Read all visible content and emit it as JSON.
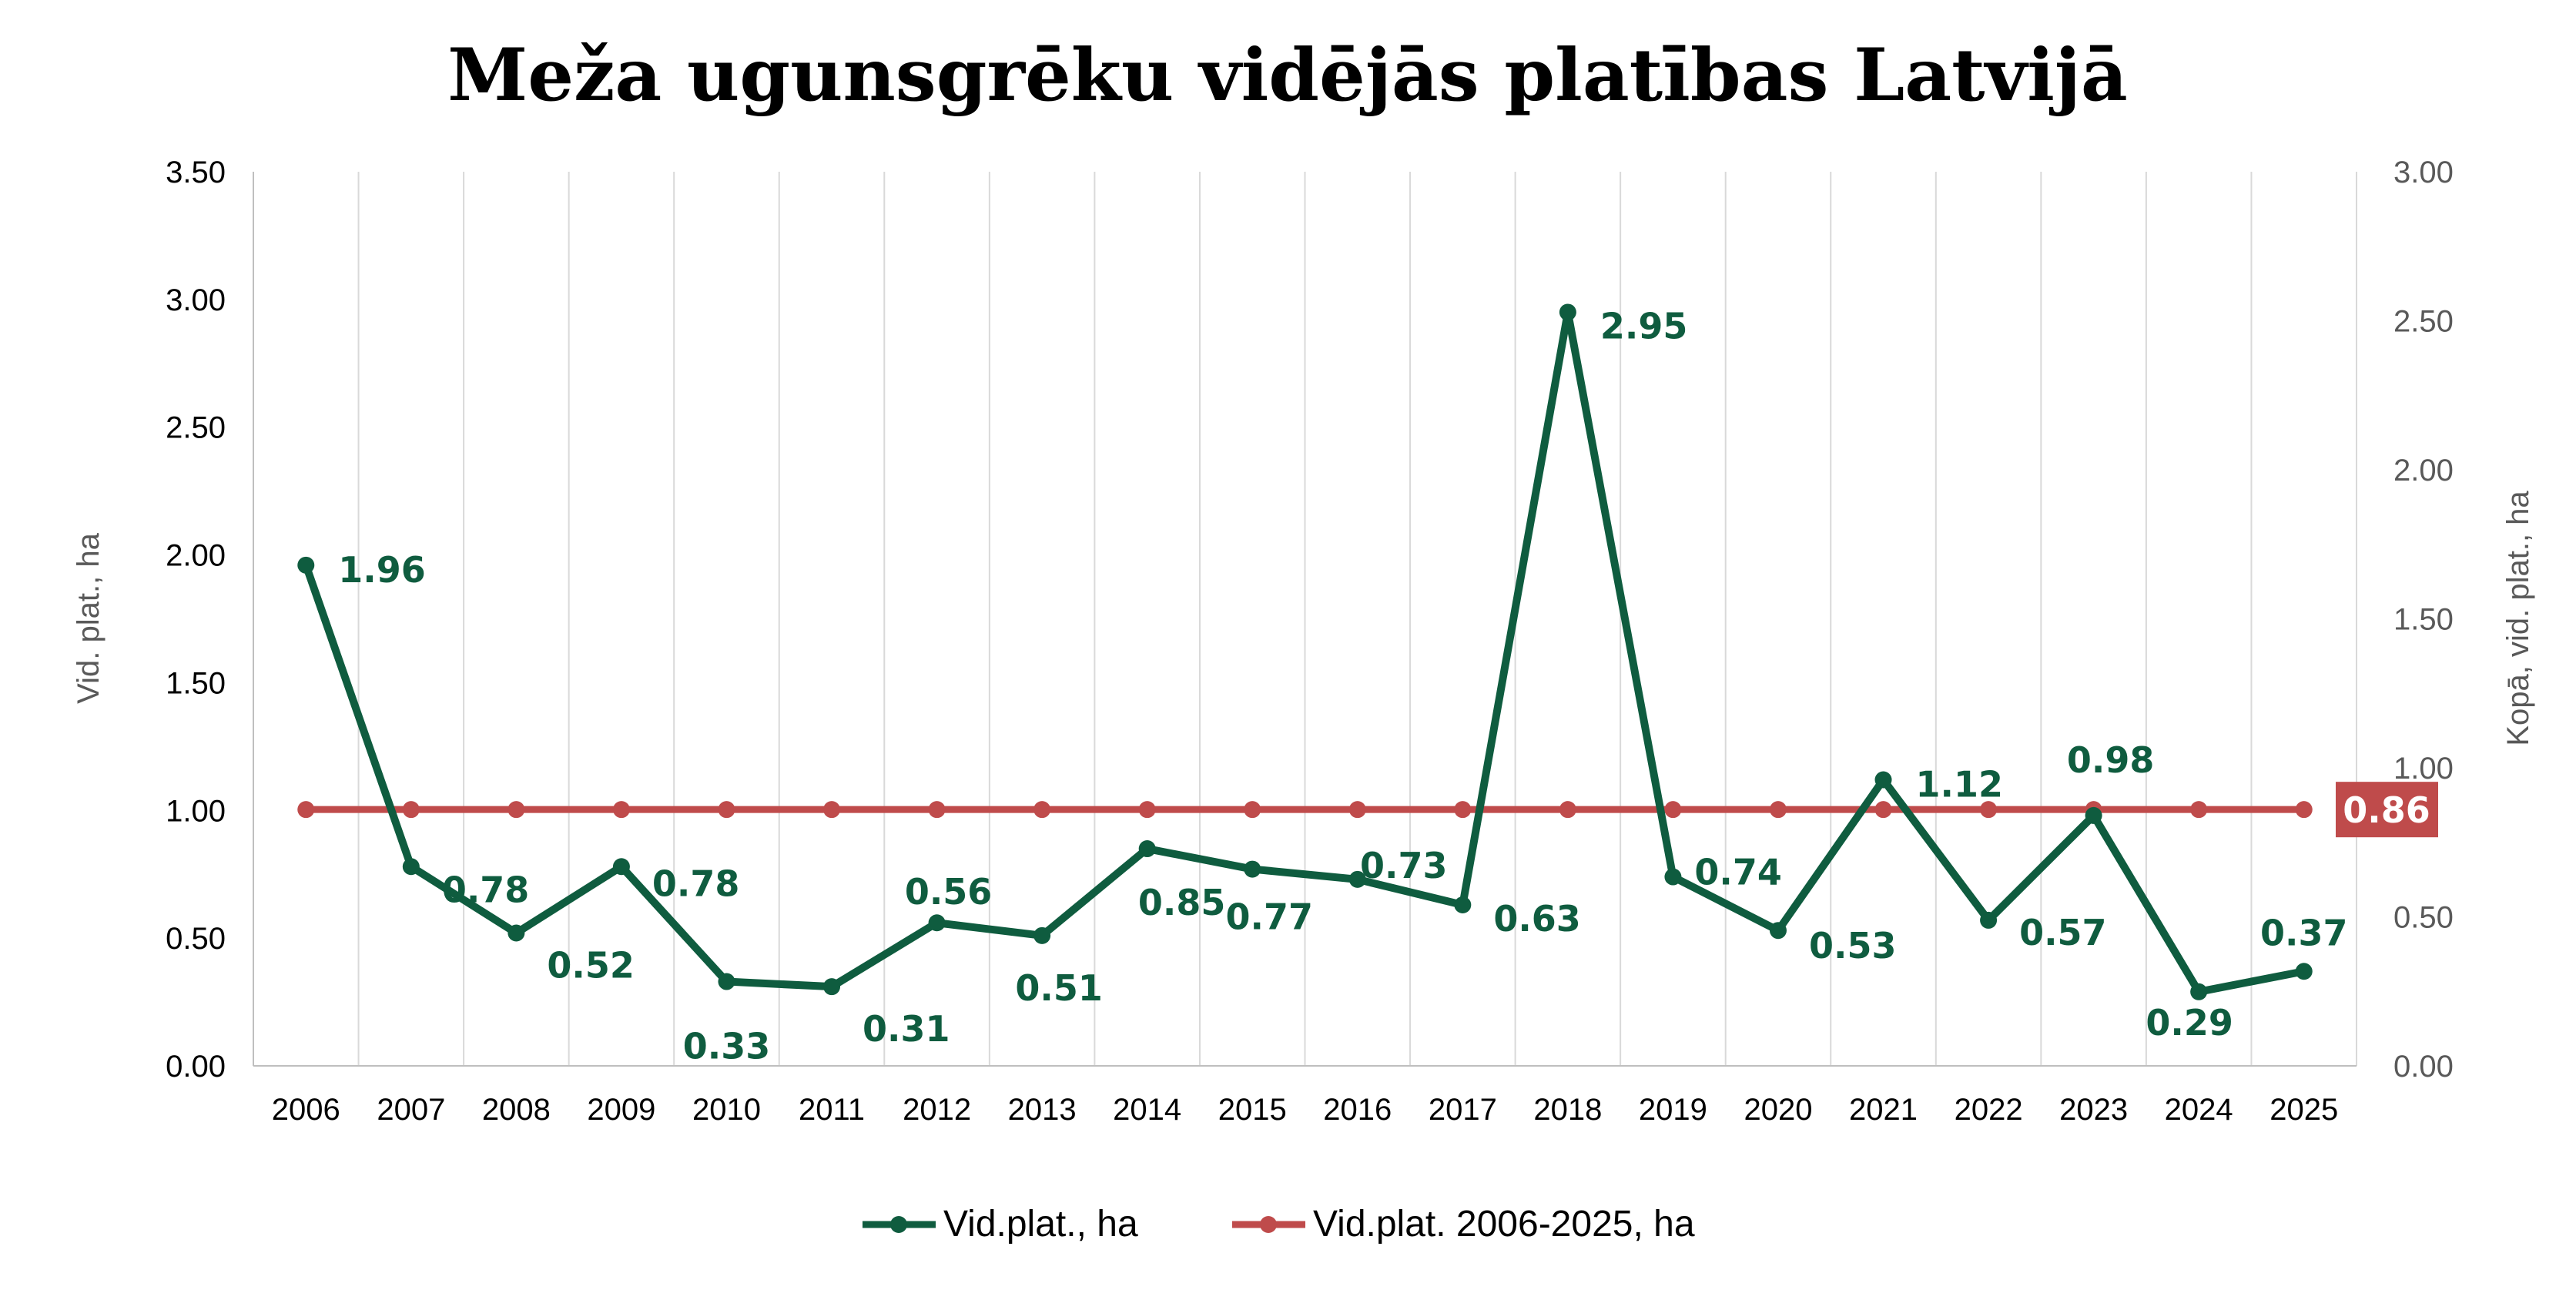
{
  "chart_data": {
    "type": "line",
    "title": "Meža ugunsgrēku vidējās platības Latvijā",
    "ylabel": "Vid. plat., ha",
    "y2label": "Kopā, vid. plat., ha",
    "ylim": [
      0,
      3.5
    ],
    "y2lim": [
      0,
      3.0
    ],
    "y_ticks": [
      "0.00",
      "0.50",
      "1.00",
      "1.50",
      "2.00",
      "2.50",
      "3.00",
      "3.50"
    ],
    "y2_ticks": [
      "0.00",
      "0.50",
      "1.00",
      "1.50",
      "2.00",
      "2.50",
      "3.00"
    ],
    "categories": [
      "2006",
      "2007",
      "2008",
      "2009",
      "2010",
      "2011",
      "2012",
      "2013",
      "2014",
      "2015",
      "2016",
      "2017",
      "2018",
      "2019",
      "2020",
      "2021",
      "2022",
      "2023",
      "2024",
      "2025"
    ],
    "grid": "vertical",
    "legend_position": "bottom",
    "series": [
      {
        "name": "Vid.plat., ha",
        "color": "#0f5c3f",
        "axis": "left",
        "values": [
          1.96,
          0.78,
          0.52,
          0.78,
          0.33,
          0.31,
          0.56,
          0.51,
          0.85,
          0.77,
          0.73,
          0.63,
          2.95,
          0.74,
          0.53,
          1.12,
          0.57,
          0.98,
          0.29,
          0.37
        ],
        "labels": [
          "1.96",
          "0.78",
          "0.52",
          "0.78",
          "0.33",
          "0.31",
          "0.56",
          "0.51",
          "0.85",
          "0.77",
          "0.73",
          "0.63",
          "2.95",
          "0.74",
          "0.53",
          "1.12",
          "0.57",
          "0.98",
          "0.29",
          "0.37"
        ]
      },
      {
        "name": "Vid.plat. 2006-2025, ha",
        "color": "#bf4b4b",
        "axis": "right",
        "values": [
          0.86,
          0.86,
          0.86,
          0.86,
          0.86,
          0.86,
          0.86,
          0.86,
          0.86,
          0.86,
          0.86,
          0.86,
          0.86,
          0.86,
          0.86,
          0.86,
          0.86,
          0.86,
          0.86,
          0.86
        ],
        "end_label": "0.86"
      }
    ],
    "colors": {
      "grid": "#d9d9d9",
      "axis_text": "#000000",
      "y2_text": "#595959"
    }
  }
}
